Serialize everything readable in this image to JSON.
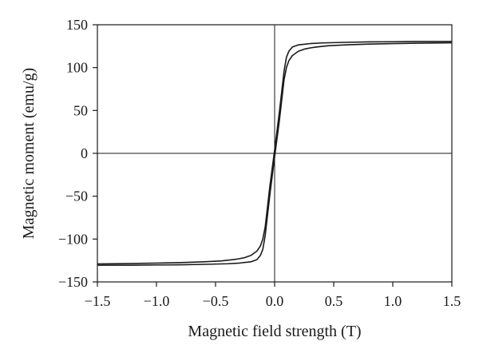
{
  "chart_data": {
    "type": "line",
    "title": "",
    "xlabel": "Magnetic field strength (T)",
    "ylabel": "Magnetic moment (emu/g)",
    "xlim": [
      -1.5,
      1.5
    ],
    "ylim": [
      -150,
      150
    ],
    "xticks": [
      -1.5,
      -1.0,
      -0.5,
      0.0,
      0.5,
      1.0,
      1.5
    ],
    "xtick_labels": [
      "−1.5",
      "−1.0",
      "−0.5",
      "0.0",
      "0.5",
      "1.0",
      "1.5"
    ],
    "yticks": [
      -150,
      -100,
      -50,
      0,
      50,
      100,
      150
    ],
    "ytick_labels": [
      "−150",
      "−100",
      "−50",
      "0",
      "50",
      "100",
      "150"
    ],
    "zero_lines": true,
    "grid": false,
    "legend": "none",
    "line_color": "#1a1a1a",
    "series": [
      {
        "x": [
          -1.5,
          -1.2,
          -1.0,
          -0.8,
          -0.6,
          -0.45,
          -0.35,
          -0.3,
          -0.25,
          -0.2,
          -0.15,
          -0.12,
          -0.1,
          -0.08,
          -0.06,
          -0.04,
          -0.02,
          0.0,
          0.02,
          0.04,
          0.06,
          0.08,
          0.1,
          0.12,
          0.15,
          0.2,
          0.3,
          0.4,
          0.6,
          0.8,
          1.0,
          1.2,
          1.5
        ],
        "y": [
          -129,
          -128.5,
          -128,
          -127.5,
          -126.5,
          -125.5,
          -124,
          -123,
          -121.5,
          -119,
          -114,
          -108,
          -100,
          -86,
          -62,
          -38,
          -17,
          4,
          26,
          48,
          72,
          96,
          112,
          119,
          124,
          126.5,
          128,
          128.8,
          129.5,
          130,
          130.2,
          130.5,
          130.5
        ]
      },
      {
        "x": [
          -1.5,
          -1.2,
          -1.0,
          -0.8,
          -0.6,
          -0.4,
          -0.3,
          -0.2,
          -0.15,
          -0.12,
          -0.1,
          -0.08,
          -0.06,
          -0.04,
          -0.02,
          0.0,
          0.02,
          0.04,
          0.06,
          0.08,
          0.1,
          0.12,
          0.15,
          0.2,
          0.25,
          0.3,
          0.35,
          0.45,
          0.6,
          0.8,
          1.0,
          1.2,
          1.5
        ],
        "y": [
          -130.5,
          -130.5,
          -130.2,
          -130,
          -129.5,
          -128.8,
          -128,
          -126.5,
          -124,
          -119,
          -112,
          -96,
          -72,
          -48,
          -26,
          -4,
          17,
          38,
          62,
          86,
          100,
          108,
          114,
          119,
          121.5,
          123,
          124,
          125.5,
          126.5,
          127.5,
          128,
          128.5,
          129
        ]
      }
    ]
  }
}
